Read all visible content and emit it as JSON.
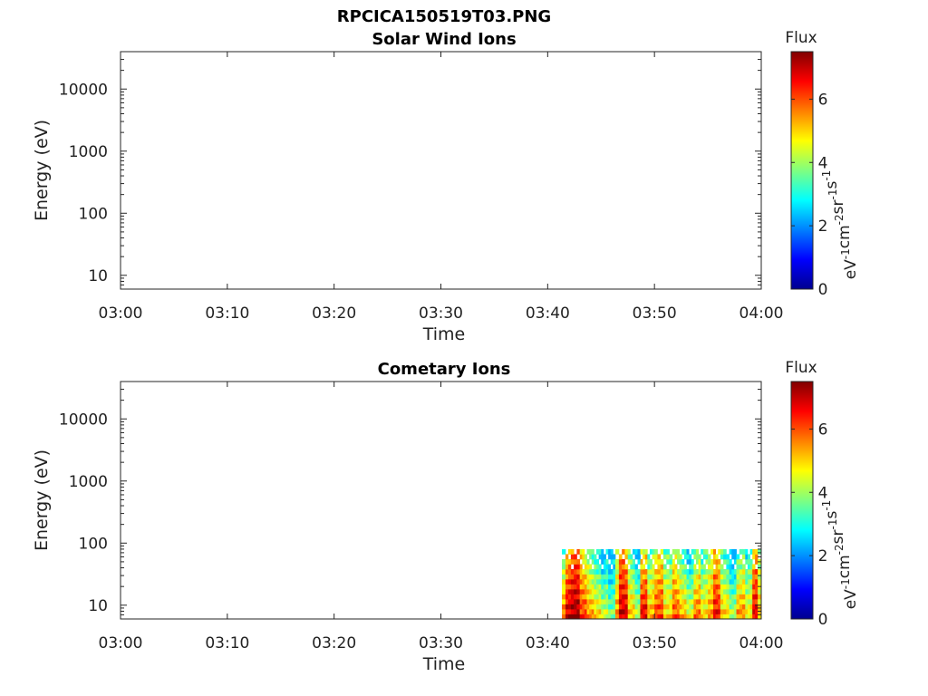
{
  "figure_title": "RPCICA150519T03.PNG",
  "colorbar": {
    "title": "Flux",
    "unit_base": [
      "eV",
      "cm",
      "sr",
      "s"
    ],
    "unit_exp": [
      "-1",
      "-2",
      "-1",
      "-1"
    ],
    "range": [
      0,
      7.5
    ],
    "ticks": [
      "0",
      "2",
      "4",
      "6"
    ],
    "colormap": "jet"
  },
  "chart_data": [
    {
      "type": "heatmap",
      "title": "Solar Wind Ions",
      "xlabel": "Time",
      "ylabel": "Energy (eV)",
      "xlim": [
        "03:00",
        "04:00"
      ],
      "xticks": [
        "03:00",
        "03:10",
        "03:20",
        "03:30",
        "03:40",
        "03:50",
        "04:00"
      ],
      "yscale": "log",
      "ylim": [
        6,
        40000
      ],
      "yticks": [
        "10",
        "100",
        "1000",
        "10000"
      ],
      "data_extent": null,
      "columns": []
    },
    {
      "type": "heatmap",
      "title": "Cometary Ions",
      "xlabel": "Time",
      "ylabel": "Energy (eV)",
      "xlim": [
        "03:00",
        "04:00"
      ],
      "xticks": [
        "03:00",
        "03:10",
        "03:20",
        "03:30",
        "03:40",
        "03:50",
        "04:00"
      ],
      "yscale": "log",
      "ylim": [
        6,
        40000
      ],
      "yticks": [
        "10",
        "100",
        "1000",
        "10000"
      ],
      "data_extent": {
        "time": [
          "03:41:20",
          "04:00:15"
        ],
        "energy_ev": [
          6,
          80
        ]
      },
      "columns": [
        {
          "start": "03:41:20",
          "end": "03:41:40",
          "flux": 5.8
        },
        {
          "start": "03:41:40",
          "end": "03:42:10",
          "flux": 7.0
        },
        {
          "start": "03:42:10",
          "end": "03:43:00",
          "flux": 7.3
        },
        {
          "start": "03:43:00",
          "end": "03:43:40",
          "flux": 6.2
        },
        {
          "start": "03:43:40",
          "end": "03:44:20",
          "flux": 5.5
        },
        {
          "start": "03:44:20",
          "end": "03:45:00",
          "flux": 5.0
        },
        {
          "start": "03:45:00",
          "end": "03:45:40",
          "flux": 4.4
        },
        {
          "start": "03:45:40",
          "end": "03:46:20",
          "flux": 3.8
        },
        {
          "start": "03:46:20",
          "end": "03:46:40",
          "flux": 5.6
        },
        {
          "start": "03:46:40",
          "end": "03:47:30",
          "flux": 7.0
        },
        {
          "start": "03:47:30",
          "end": "03:48:10",
          "flux": 5.2
        },
        {
          "start": "03:48:10",
          "end": "03:48:40",
          "flux": 4.3
        },
        {
          "start": "03:48:40",
          "end": "03:49:20",
          "flux": 6.8
        },
        {
          "start": "03:49:20",
          "end": "03:50:00",
          "flux": 5.4
        },
        {
          "start": "03:50:00",
          "end": "03:50:50",
          "flux": 6.2
        },
        {
          "start": "03:50:50",
          "end": "03:51:40",
          "flux": 5.0
        },
        {
          "start": "03:51:40",
          "end": "03:52:20",
          "flux": 6.0
        },
        {
          "start": "03:52:20",
          "end": "03:53:00",
          "flux": 5.3
        },
        {
          "start": "03:53:00",
          "end": "03:53:40",
          "flux": 4.6
        },
        {
          "start": "03:53:40",
          "end": "03:54:20",
          "flux": 5.8
        },
        {
          "start": "03:54:20",
          "end": "03:55:00",
          "flux": 4.9
        },
        {
          "start": "03:55:00",
          "end": "03:55:30",
          "flux": 5.5
        },
        {
          "start": "03:55:30",
          "end": "03:56:10",
          "flux": 6.6
        },
        {
          "start": "03:56:10",
          "end": "03:57:00",
          "flux": 5.1
        },
        {
          "start": "03:57:00",
          "end": "03:57:40",
          "flux": 4.2
        },
        {
          "start": "03:57:40",
          "end": "03:58:30",
          "flux": 5.6
        },
        {
          "start": "03:58:30",
          "end": "03:59:10",
          "flux": 4.8
        },
        {
          "start": "03:59:10",
          "end": "03:59:40",
          "flux": 6.8
        },
        {
          "start": "03:59:40",
          "end": "04:00:15",
          "flux": 5.2
        }
      ]
    }
  ]
}
